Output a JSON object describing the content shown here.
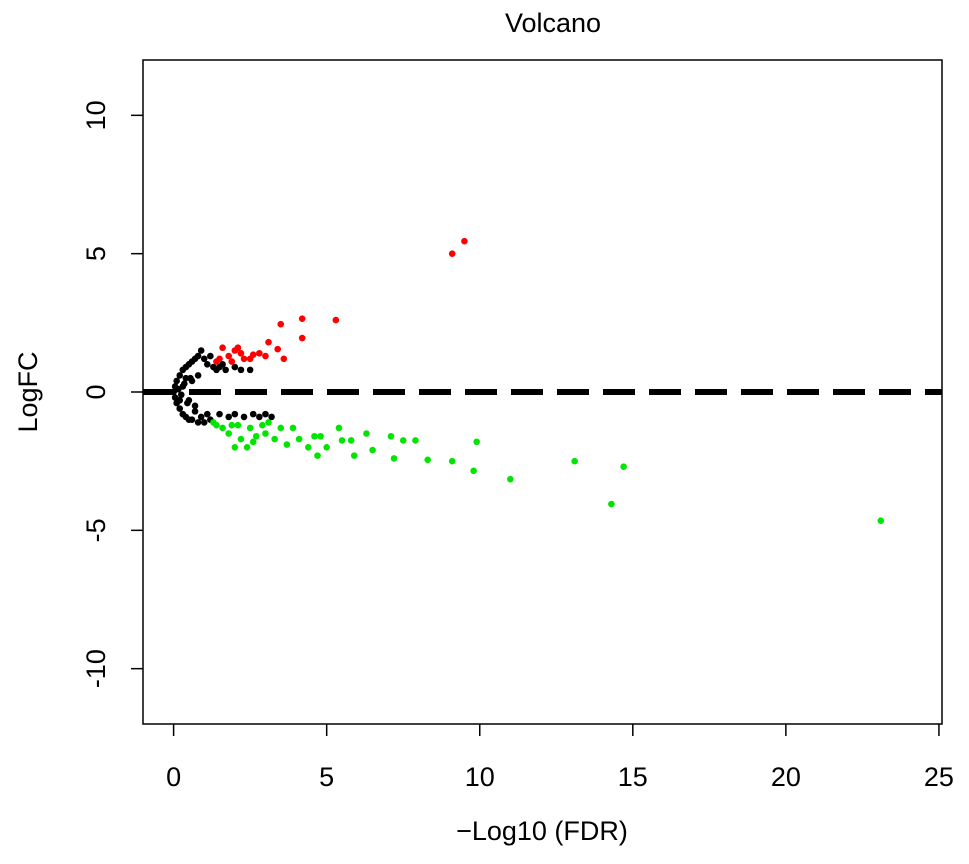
{
  "chart_data": {
    "type": "scatter",
    "title": "Volcano",
    "x_label": "−Log10 (FDR)",
    "y_label": "LogFC",
    "xlim": [
      -1,
      25.1
    ],
    "ylim": [
      -12,
      12
    ],
    "xticks": [
      0,
      5,
      10,
      15,
      20,
      25
    ],
    "yticks": [
      -10,
      -5,
      0,
      5,
      10
    ],
    "hline": 0,
    "hline_color": "#000000",
    "series": [
      {
        "color": "#000000",
        "x": [
          0,
          0.05,
          0.05,
          0.1,
          0.1,
          0.15,
          0.2,
          0.2,
          0.25,
          0.3,
          0.3,
          0.35,
          0.4,
          0.4,
          0.45,
          0.5,
          0.5,
          0.55,
          0.6,
          0.6,
          0.7,
          0.7,
          0.8,
          0.8,
          0.9,
          0.9,
          1.0,
          1.0,
          1.1,
          1.1,
          1.2,
          1.2,
          1.3,
          1.4,
          1.5,
          1.5,
          1.6,
          1.7,
          1.8,
          2.0,
          2.0,
          2.2,
          2.3,
          2.5,
          2.6,
          2.8,
          3.0,
          3.2,
          0.3,
          0.5,
          0.6,
          0.4,
          0.2,
          0.8,
          0.7
        ],
        "values": [
          0,
          0.2,
          -0.2,
          0.4,
          -0.4,
          0.1,
          0.6,
          -0.6,
          -0.1,
          0.8,
          -0.8,
          0.3,
          0.9,
          -0.9,
          -0.4,
          1.0,
          -1.0,
          0.5,
          1.1,
          -1.0,
          1.2,
          -0.7,
          1.3,
          -1.1,
          1.5,
          -0.9,
          1.2,
          -1.1,
          1.0,
          -0.8,
          1.3,
          -1.0,
          0.9,
          0.8,
          0.9,
          -0.8,
          1.0,
          0.8,
          -0.9,
          0.9,
          -0.8,
          0.8,
          -0.9,
          0.8,
          -0.8,
          -0.9,
          -0.8,
          -0.9,
          0.2,
          -0.3,
          0.4,
          0.5,
          -0.3,
          0.6,
          -0.5
        ]
      },
      {
        "color": "#ff0000",
        "x": [
          9.1,
          9.5,
          4.2,
          5.3,
          3.5,
          4.2,
          3.4,
          3.1,
          2.5,
          3.6,
          1.5,
          1.6,
          1.8,
          2.0,
          2.2,
          1.4,
          2.1,
          2.8,
          3.0,
          1.9,
          2.3,
          2.6
        ],
        "values": [
          5.0,
          5.45,
          2.65,
          2.6,
          2.45,
          1.95,
          1.55,
          1.8,
          1.2,
          1.2,
          1.2,
          1.6,
          1.3,
          1.5,
          1.4,
          1.1,
          1.6,
          1.4,
          1.3,
          1.1,
          1.2,
          1.35
        ]
      },
      {
        "color": "#00e600",
        "x": [
          23.1,
          14.3,
          14.7,
          13.1,
          11.0,
          9.8,
          9.9,
          9.1,
          8.3,
          7.9,
          7.5,
          7.2,
          7.1,
          6.5,
          6.3,
          5.9,
          5.8,
          5.5,
          5.4,
          5.0,
          4.8,
          4.6,
          4.7,
          4.4,
          4.1,
          3.9,
          3.7,
          3.5,
          3.3,
          3.0,
          2.9,
          2.7,
          2.5,
          2.4,
          2.2,
          2.1,
          2.0,
          1.8,
          1.6,
          1.4,
          1.3,
          2.6,
          3.1,
          1.9
        ],
        "values": [
          -4.65,
          -4.05,
          -2.7,
          -2.5,
          -3.15,
          -2.85,
          -1.8,
          -2.5,
          -2.45,
          -1.75,
          -1.75,
          -2.4,
          -1.6,
          -2.1,
          -1.5,
          -2.3,
          -1.75,
          -1.75,
          -1.3,
          -2.0,
          -1.6,
          -1.6,
          -2.3,
          -2.0,
          -1.7,
          -1.3,
          -1.9,
          -1.3,
          -1.7,
          -1.5,
          -1.2,
          -1.6,
          -1.3,
          -2.0,
          -1.7,
          -1.2,
          -2.0,
          -1.5,
          -1.3,
          -1.2,
          -1.1,
          -1.8,
          -1.1,
          -1.2
        ]
      }
    ]
  }
}
